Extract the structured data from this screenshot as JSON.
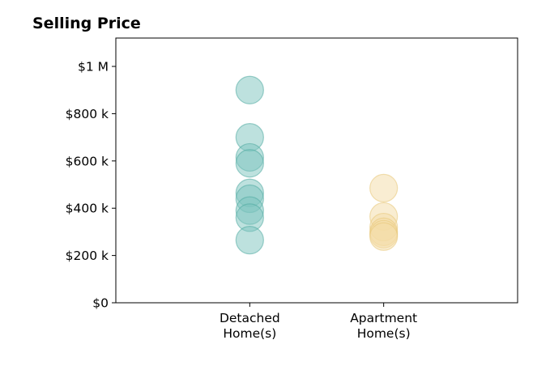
{
  "chart_data": {
    "type": "scatter",
    "title": "Selling Price",
    "xlabel": "",
    "ylabel": "",
    "categories": [
      [
        "Detached",
        "Home(s)"
      ],
      [
        "Apartment",
        "Home(s)"
      ]
    ],
    "y_ticks": [
      {
        "value": 0,
        "label": "$0"
      },
      {
        "value": 200000,
        "label": "$200 k"
      },
      {
        "value": 400000,
        "label": "$400 k"
      },
      {
        "value": 600000,
        "label": "$600 k"
      },
      {
        "value": 800000,
        "label": "$800 k"
      },
      {
        "value": 1000000,
        "label": "$1 M"
      }
    ],
    "ylim": [
      0,
      1120000
    ],
    "xlim": [
      -1,
      2
    ],
    "grid": false,
    "legend": "none",
    "series": [
      {
        "category_index": 0,
        "color": "#7cc4be",
        "edge_color": "#4fa9a1",
        "values": [
          900000,
          700000,
          615000,
          590000,
          465000,
          440000,
          390000,
          360000,
          265000
        ]
      },
      {
        "category_index": 1,
        "color": "#f3dca6",
        "edge_color": "#e8c676",
        "values": [
          485000,
          365000,
          320000,
          300000,
          290000,
          280000
        ]
      }
    ]
  }
}
